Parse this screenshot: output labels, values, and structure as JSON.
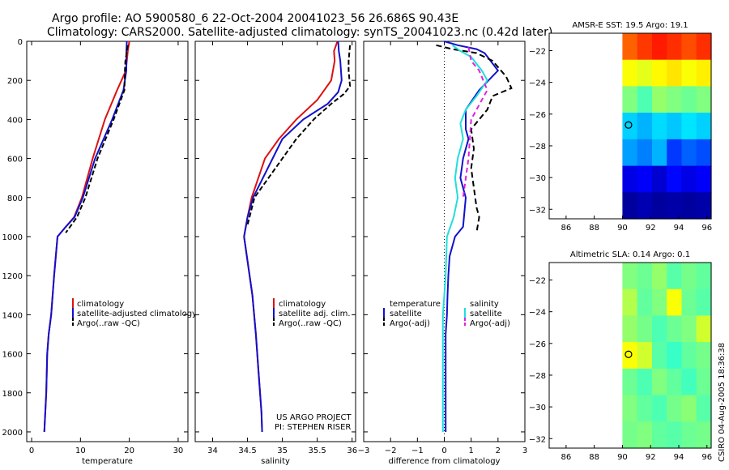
{
  "header": {
    "line1": "Argo profile: AO 5900580_6 22-Oct-2004 20041023_56 26.686S 90.43E",
    "line2": "Climatology: CARS2000. Satellite-adjusted climatology: synTS_20041023.nc (0.42d later)"
  },
  "credit": {
    "line1": "US ARGO PROJECT",
    "line2": "PI: STEPHEN RISER"
  },
  "stamp": "CSIRO 04-Aug-2005 18:36:38",
  "colors": {
    "climatology": "#dd1111",
    "satellite": "#1111cc",
    "argo": "#000000",
    "satellite_salinity": "#22dddd",
    "argo_salinity": "#dd22dd"
  },
  "chart_data": [
    {
      "type": "line",
      "panel": "temperature",
      "xlabel": "temperature",
      "xlim": [
        -1,
        32
      ],
      "ylim": [
        0,
        2050
      ],
      "y_reversed": true,
      "xticks": [
        0,
        10,
        20,
        30
      ],
      "yticks": [
        0,
        200,
        400,
        600,
        800,
        1000,
        1200,
        1400,
        1600,
        1800,
        2000
      ],
      "legend": [
        "climatology",
        "satellite-adjusted climatology",
        "Argo(..raw -QC)"
      ],
      "series": [
        {
          "name": "climatology",
          "color": "#dd1111",
          "dash": "",
          "x": [
            20.0,
            19.7,
            19.3,
            17.5,
            15.0,
            12.5,
            10.3,
            8.7,
            7.0,
            5.3,
            4.6,
            4.0,
            3.5,
            3.2,
            3.0,
            2.8,
            2.6
          ],
          "y": [
            0,
            50,
            150,
            250,
            400,
            600,
            800,
            900,
            950,
            1000,
            1200,
            1400,
            1500,
            1600,
            1800,
            1900,
            2000
          ]
        },
        {
          "name": "satellite-adjusted climatology",
          "color": "#1111cc",
          "dash": "",
          "x": [
            19.5,
            19.4,
            19.4,
            18.8,
            16.5,
            13.0,
            10.5,
            8.8,
            7.0,
            5.3,
            4.6,
            4.0,
            3.5,
            3.2,
            3.0,
            2.8,
            2.6
          ],
          "y": [
            0,
            50,
            150,
            250,
            400,
            600,
            800,
            900,
            950,
            1000,
            1200,
            1400,
            1500,
            1600,
            1800,
            1900,
            2000
          ]
        },
        {
          "name": "Argo(..raw -QC)",
          "color": "#000000",
          "dash": "6,3",
          "x": [
            19.7,
            19.2,
            19.1,
            19.0,
            16.8,
            13.5,
            11.0,
            9.3,
            7.0
          ],
          "y": [
            20,
            100,
            150,
            250,
            400,
            600,
            800,
            900,
            980
          ]
        }
      ]
    },
    {
      "type": "line",
      "panel": "salinity",
      "xlabel": "salinity",
      "xlim": [
        33.75,
        36.05
      ],
      "ylim": [
        0,
        2050
      ],
      "y_reversed": true,
      "xticks": [
        34,
        34.5,
        35,
        35.5,
        36
      ],
      "yticks": [
        0,
        200,
        400,
        600,
        800,
        1000,
        1200,
        1400,
        1600,
        1800,
        2000
      ],
      "legend": [
        "climatology",
        "satellite adj. clim.",
        "Argo(..raw -QC)"
      ],
      "series": [
        {
          "name": "climatology",
          "color": "#dd1111",
          "dash": "",
          "x": [
            35.79,
            35.74,
            35.75,
            35.7,
            35.5,
            35.2,
            34.95,
            34.75,
            34.56,
            34.5,
            34.45,
            34.57,
            34.62,
            34.66,
            34.7,
            34.71
          ],
          "y": [
            0,
            50,
            100,
            200,
            300,
            400,
            500,
            600,
            800,
            900,
            1000,
            1300,
            1500,
            1700,
            1900,
            2000
          ]
        },
        {
          "name": "satellite adj. clim.",
          "color": "#1111cc",
          "dash": "",
          "x": [
            35.8,
            35.81,
            35.83,
            35.85,
            35.8,
            35.65,
            35.3,
            35.0,
            34.58,
            34.5,
            34.45,
            34.57,
            34.62,
            34.66,
            34.7,
            34.71
          ],
          "y": [
            0,
            50,
            100,
            200,
            260,
            320,
            400,
            500,
            800,
            900,
            1000,
            1300,
            1500,
            1700,
            1900,
            2000
          ]
        },
        {
          "name": "Argo(..raw -QC)",
          "color": "#000000",
          "dash": "6,3",
          "x": [
            35.97,
            35.95,
            35.95,
            35.97,
            35.88,
            35.7,
            35.45,
            35.2,
            34.6,
            34.5
          ],
          "y": [
            20,
            100,
            150,
            230,
            270,
            320,
            400,
            500,
            800,
            940
          ]
        }
      ]
    },
    {
      "type": "line",
      "panel": "difference",
      "xlabel": "difference from climatology",
      "xlim": [
        -3,
        3
      ],
      "ylim": [
        0,
        2050
      ],
      "y_reversed": true,
      "zero_line": true,
      "xticks": [
        -3,
        -2,
        -1,
        0,
        1,
        2,
        3
      ],
      "yticks": [
        0,
        200,
        400,
        600,
        800,
        1000,
        1200,
        1400,
        1600,
        1800,
        2000
      ],
      "legend": {
        "temperature_group": [
          "temperature",
          "satellite",
          "Argo(-adj)"
        ],
        "salinity_group": [
          "salinity",
          "satellite",
          "Argo(-adj)"
        ]
      },
      "series": [
        {
          "name": "temperature satellite",
          "color": "#1111cc",
          "dash": "",
          "x": [
            0.0,
            0.5,
            1.2,
            1.5,
            2.0,
            1.3,
            0.8,
            0.8,
            0.9,
            0.7,
            0.6,
            0.8,
            0.7,
            0.4,
            0.2,
            0.15,
            0.12,
            0.1,
            0.05,
            0.05,
            0.05,
            0.05
          ],
          "y": [
            0,
            20,
            40,
            60,
            150,
            250,
            350,
            450,
            500,
            600,
            700,
            800,
            950,
            1000,
            1100,
            1200,
            1300,
            1400,
            1500,
            1700,
            1900,
            2000
          ]
        },
        {
          "name": "temperature Argo(-adj)",
          "color": "#000000",
          "dash": "7,4",
          "x": [
            -0.3,
            0.3,
            1.2,
            1.8,
            2.3,
            2.5,
            1.8,
            1.6,
            1.0,
            1.1,
            1.0,
            1.1,
            1.2,
            1.3,
            1.2
          ],
          "y": [
            20,
            40,
            60,
            100,
            180,
            240,
            280,
            350,
            450,
            550,
            650,
            750,
            850,
            900,
            980
          ]
        },
        {
          "name": "salinity satellite",
          "color": "#22dddd",
          "dash": "",
          "x": [
            0.3,
            0.6,
            1.0,
            1.4,
            1.6,
            1.2,
            0.8,
            0.6,
            0.7,
            0.5,
            0.4,
            0.5,
            0.35,
            0.1,
            0.05,
            0.0,
            -0.05,
            -0.05,
            -0.05,
            -0.05
          ],
          "y": [
            20,
            50,
            80,
            150,
            200,
            280,
            350,
            420,
            500,
            600,
            700,
            800,
            900,
            1000,
            1200,
            1300,
            1400,
            1600,
            1800,
            2000
          ]
        },
        {
          "name": "salinity Argo(-adj)",
          "color": "#dd22dd",
          "dash": "6,4",
          "x": [
            0.9,
            1.0,
            1.3,
            1.6,
            1.4,
            1.0,
            0.9,
            0.7
          ],
          "y": [
            30,
            100,
            150,
            250,
            300,
            400,
            600,
            800
          ]
        }
      ]
    },
    {
      "type": "heatmap",
      "panel": "sst-map",
      "title": "AMSR-E SST: 19.5 Argo: 19.1",
      "xlim": [
        84.8,
        96.3
      ],
      "ylim": [
        -32.6,
        -20.9
      ],
      "xticks": [
        86,
        88,
        90,
        92,
        94,
        96
      ],
      "yticks": [
        -22,
        -24,
        -26,
        -28,
        -30,
        -32
      ],
      "data_from_lon": 90,
      "profile_marker": {
        "lon": 90.43,
        "lat": -26.686
      },
      "rows_lat": [
        -21,
        -23,
        -25,
        -27,
        -29,
        -31,
        -32.3
      ],
      "values": [
        [
          0.78,
          0.82,
          0.85,
          0.83,
          0.8,
          0.83
        ],
        [
          0.62,
          0.6,
          0.63,
          0.65,
          0.62,
          0.64
        ],
        [
          0.5,
          0.45,
          0.52,
          0.5,
          0.48,
          0.5
        ],
        [
          0.33,
          0.3,
          0.34,
          0.32,
          0.35,
          0.33
        ],
        [
          0.28,
          0.25,
          0.3,
          0.18,
          0.22,
          0.2
        ],
        [
          0.1,
          0.12,
          0.08,
          0.13,
          0.1,
          0.12
        ],
        [
          0.03,
          0.05,
          0.03,
          0.04,
          0.03,
          0.04
        ]
      ],
      "colormap": "jet"
    },
    {
      "type": "heatmap",
      "panel": "sla-map",
      "title": "Altimetric SLA: 0.14 Argo: 0.1",
      "xlim": [
        84.8,
        96.3
      ],
      "ylim": [
        -32.6,
        -20.9
      ],
      "xticks": [
        86,
        88,
        90,
        92,
        94,
        96
      ],
      "yticks": [
        -22,
        -24,
        -26,
        -28,
        -30,
        -32
      ],
      "data_from_lon": 90,
      "profile_marker": {
        "lon": 90.43,
        "lat": -26.686
      },
      "rows_lat": [
        -21,
        -23,
        -25,
        -27,
        -29,
        -31,
        -32.3
      ],
      "values": [
        [
          0.5,
          0.48,
          0.52,
          0.46,
          0.49,
          0.47
        ],
        [
          0.55,
          0.47,
          0.5,
          0.62,
          0.48,
          0.46
        ],
        [
          0.52,
          0.49,
          0.45,
          0.48,
          0.5,
          0.58
        ],
        [
          0.62,
          0.58,
          0.46,
          0.43,
          0.47,
          0.49
        ],
        [
          0.48,
          0.45,
          0.5,
          0.47,
          0.44,
          0.48
        ],
        [
          0.5,
          0.47,
          0.45,
          0.49,
          0.51,
          0.46
        ],
        [
          0.49,
          0.5,
          0.47,
          0.46,
          0.48,
          0.49
        ]
      ],
      "colormap": "jet"
    }
  ]
}
